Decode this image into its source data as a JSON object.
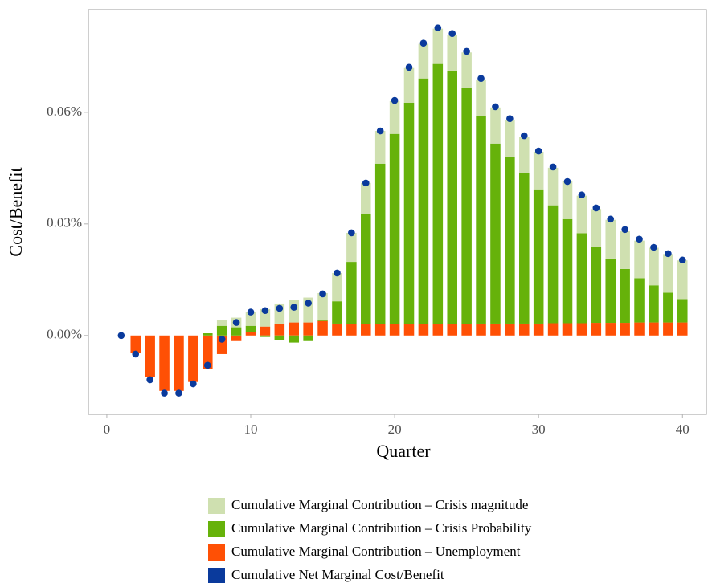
{
  "chart_data": {
    "type": "bar",
    "x_label": "Quarter",
    "y_label": "Cost/Benefit",
    "x": [
      1,
      2,
      3,
      4,
      5,
      6,
      7,
      8,
      9,
      10,
      11,
      12,
      13,
      14,
      15,
      16,
      17,
      18,
      19,
      20,
      21,
      22,
      23,
      24,
      25,
      26,
      27,
      28,
      29,
      30,
      31,
      32,
      33,
      34,
      35,
      36,
      37,
      38,
      39,
      40
    ],
    "xlim": [
      -1.28,
      41.66
    ],
    "xticks": [
      0,
      10,
      20,
      30,
      40
    ],
    "ylim": [
      -0.0212,
      0.0876
    ],
    "yticks": [
      {
        "value": 0,
        "label": "0.00%"
      },
      {
        "value": 0.03,
        "label": "0.03%"
      },
      {
        "value": 0.06,
        "label": "0.06%"
      }
    ],
    "grid": true,
    "series": [
      {
        "name": "Cumulative Marginal Contribution – Crisis magnitude",
        "color": "#cfe0b0",
        "type": "bar",
        "values": [
          0,
          0,
          0,
          0,
          0,
          0,
          0,
          0.0015,
          0.0026,
          0.0037,
          0.0047,
          0.0054,
          0.006,
          0.0067,
          0.0073,
          0.0076,
          0.0078,
          0.0084,
          0.0088,
          0.0088,
          0.0093,
          0.0093,
          0.0095,
          0.0095,
          0.0095,
          0.0097,
          0.0097,
          0.0099,
          0.0097,
          0.0101,
          0.0101,
          0.0101,
          0.0101,
          0.0101,
          0.0104,
          0.0101,
          0.0101,
          0.0101,
          0.0104,
          0.0104
        ]
      },
      {
        "name": "Cumulative Marginal Contribution – Crisis Probability",
        "color": "#66b20a",
        "type": "bar",
        "values": [
          0,
          0,
          0,
          0,
          0,
          0,
          0.0006,
          0.0026,
          0.0022,
          0.0017,
          -0.0004,
          -0.0013,
          -0.0019,
          -0.0015,
          0.0002,
          0.006,
          0.0168,
          0.0296,
          0.0432,
          0.0512,
          0.0596,
          0.0661,
          0.07,
          0.0682,
          0.0635,
          0.0559,
          0.0484,
          0.0449,
          0.0404,
          0.0361,
          0.0317,
          0.028,
          0.0242,
          0.0205,
          0.0173,
          0.0145,
          0.0119,
          0.01,
          0.008,
          0.0063
        ]
      },
      {
        "name": "Cumulative Marginal Contribution – Unemployment",
        "color": "#ff5005",
        "type": "bar",
        "values": [
          0,
          -0.0048,
          -0.0112,
          -0.0149,
          -0.0149,
          -0.0125,
          -0.0091,
          -0.005,
          -0.0015,
          0.0009,
          0.0024,
          0.0032,
          0.0035,
          0.0035,
          0.0039,
          0.0032,
          0.003,
          0.003,
          0.003,
          0.003,
          0.003,
          0.003,
          0.003,
          0.003,
          0.0031,
          0.0032,
          0.0032,
          0.0032,
          0.0032,
          0.0032,
          0.0033,
          0.0033,
          0.0033,
          0.0034,
          0.0034,
          0.0034,
          0.0035,
          0.0035,
          0.0035,
          0.0035
        ]
      },
      {
        "name": "Cumulative Net Marginal Cost/Benefit",
        "color": "#0a3a9c",
        "type": "point",
        "values": [
          0,
          -0.005,
          -0.0119,
          -0.0155,
          -0.0155,
          -0.013,
          -0.008,
          -0.001,
          0.0035,
          0.0063,
          0.0067,
          0.0073,
          0.0076,
          0.0087,
          0.0112,
          0.0168,
          0.0276,
          0.041,
          0.055,
          0.0632,
          0.0721,
          0.0786,
          0.0827,
          0.0812,
          0.0764,
          0.0691,
          0.0615,
          0.0583,
          0.0537,
          0.0496,
          0.0453,
          0.0414,
          0.0378,
          0.0343,
          0.0313,
          0.0285,
          0.0259,
          0.0237,
          0.022,
          0.0203
        ]
      }
    ]
  }
}
